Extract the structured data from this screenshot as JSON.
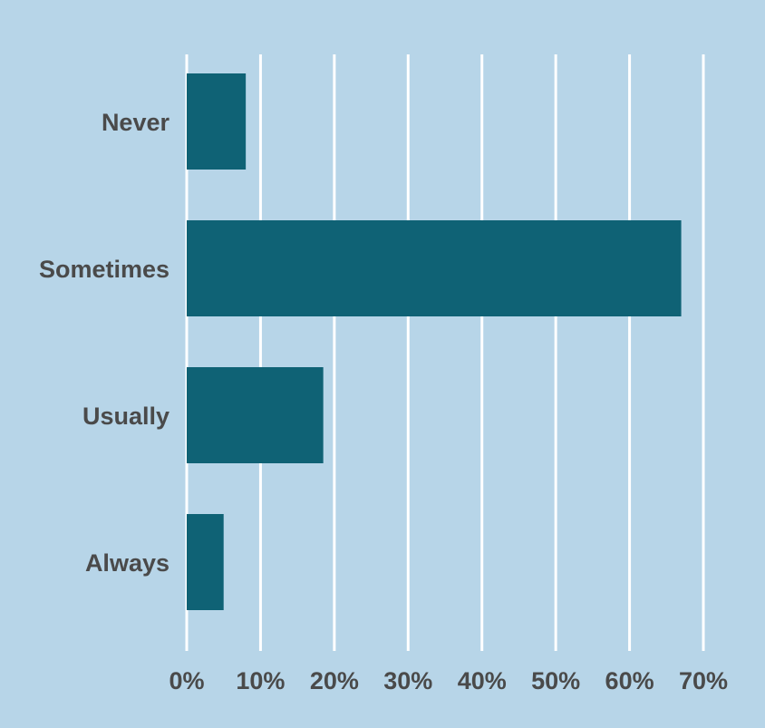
{
  "colors": {
    "background": "#b7d5e8",
    "bar": "#0f6275",
    "gridline": "#ffffff",
    "text": "#4a4a4a"
  },
  "chart_data": {
    "type": "bar",
    "orientation": "horizontal",
    "categories": [
      "Never",
      "Sometimes",
      "Usually",
      "Always"
    ],
    "values": [
      8,
      67,
      18.5,
      5
    ],
    "xlim": [
      0,
      70
    ],
    "xticks": [
      0,
      10,
      20,
      30,
      40,
      50,
      60,
      70
    ],
    "xtick_labels": [
      "0%",
      "10%",
      "20%",
      "30%",
      "40%",
      "50%",
      "60%",
      "70%"
    ],
    "grid": "vertical",
    "legend": "none"
  }
}
